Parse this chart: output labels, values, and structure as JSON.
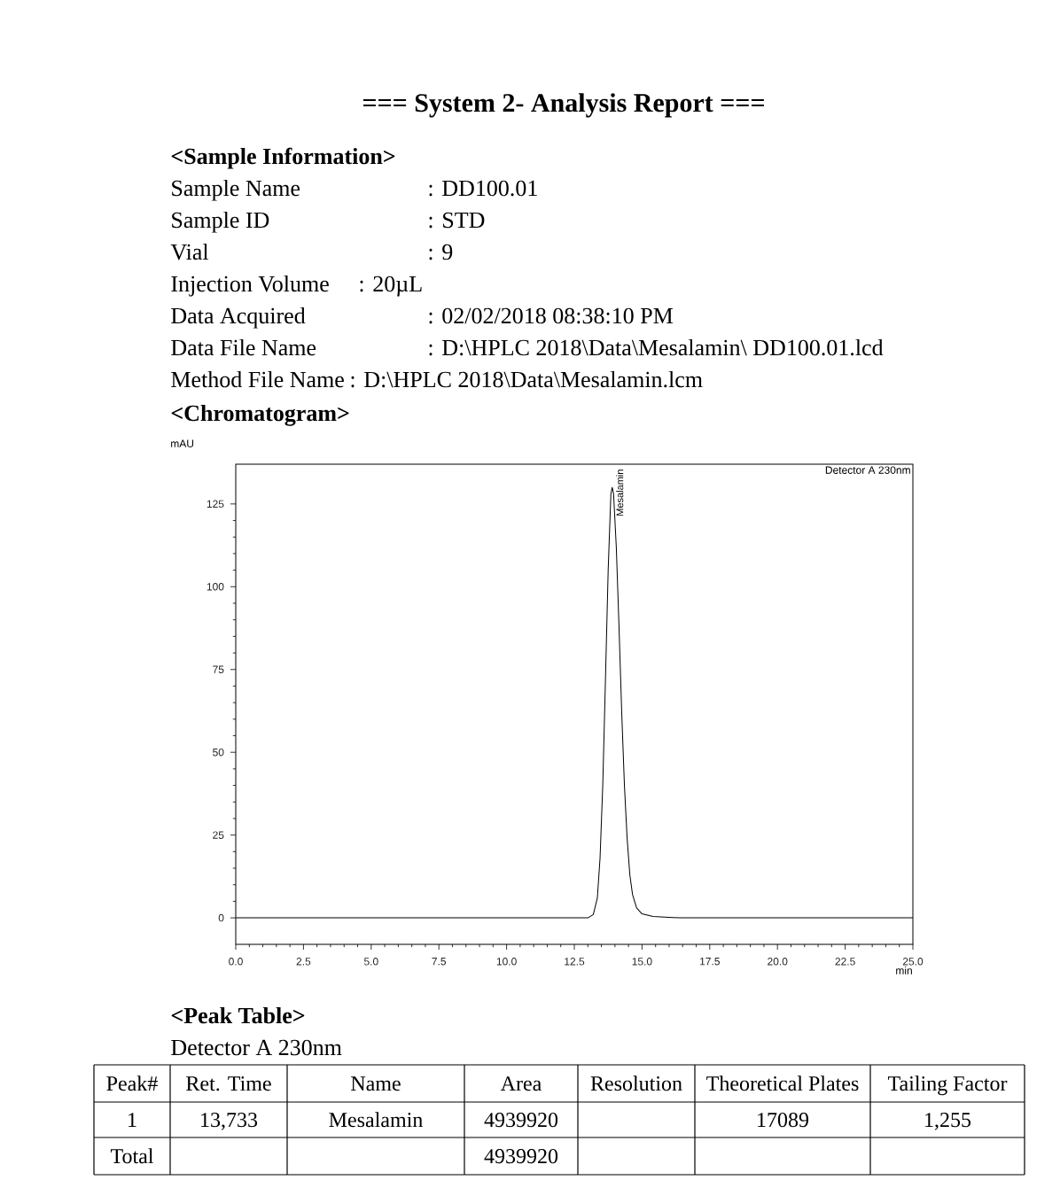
{
  "chart_data": {
    "type": "line",
    "title": "=== System 2- Analysis Report ===",
    "xlabel": "min",
    "ylabel": "mAU",
    "color": "#000000",
    "x": [
      0,
      13.0,
      13.2,
      13.35,
      13.45,
      13.55,
      13.65,
      13.75,
      13.85,
      13.9,
      13.95,
      14.05,
      14.15,
      14.25,
      14.35,
      14.45,
      14.55,
      14.65,
      14.8,
      15.0,
      15.4,
      16.4,
      25
    ],
    "values": [
      0,
      0,
      1,
      6,
      18,
      40,
      72,
      105,
      128,
      130,
      128,
      112,
      88,
      62,
      40,
      24,
      13,
      7,
      3,
      1.2,
      0.4,
      0,
      0
    ],
    "xlim": [
      0,
      25
    ],
    "ylim": [
      -8,
      137
    ],
    "xticks": [
      {
        "value": 0,
        "label": "0.0"
      },
      {
        "value": 2.5,
        "label": "2.5"
      },
      {
        "value": 5,
        "label": "5.0"
      },
      {
        "value": 7.5,
        "label": "7.5"
      },
      {
        "value": 10,
        "label": "10.0"
      },
      {
        "value": 12.5,
        "label": "12.5"
      },
      {
        "value": 15,
        "label": "15.0"
      },
      {
        "value": 17.5,
        "label": "17.5"
      },
      {
        "value": 20,
        "label": "20.0"
      },
      {
        "value": 22.5,
        "label": "22.5"
      },
      {
        "value": 25,
        "label": "25.0"
      }
    ],
    "yticks": [
      0,
      25,
      50,
      75,
      100,
      125
    ],
    "annotations": [
      "<Sample Information>",
      "Sample Name",
      ": DD100.01",
      "Sample ID",
      ": STD",
      "Vial",
      ": 9",
      "Injection Volume",
      ": 20µL",
      "Data Acquired",
      ": 02/02/2018 08:38:10 PM",
      "Data File Name",
      ": D:\\HPLC 2018\\Data\\Mesalamin\\ DD100.01.lcd",
      "Method File Name",
      ": D:\\HPLC 2018\\Data\\Mesalamin.lcm",
      "<Chromatogram>",
      "Detector A 230nm",
      {
        "text": "Mesalamin",
        "x": 13.9,
        "y": 130
      },
      "<Peak Table>",
      "Detector A 230nm",
      "Peak#",
      "Ret. Time",
      "Name",
      "Area",
      "Resolution",
      "Theoretical Plates",
      "Tailing Factor",
      "1",
      "13,733",
      "Mesalamin",
      "4939920",
      "17089",
      "1,255",
      "Total",
      "4939920"
    ]
  }
}
